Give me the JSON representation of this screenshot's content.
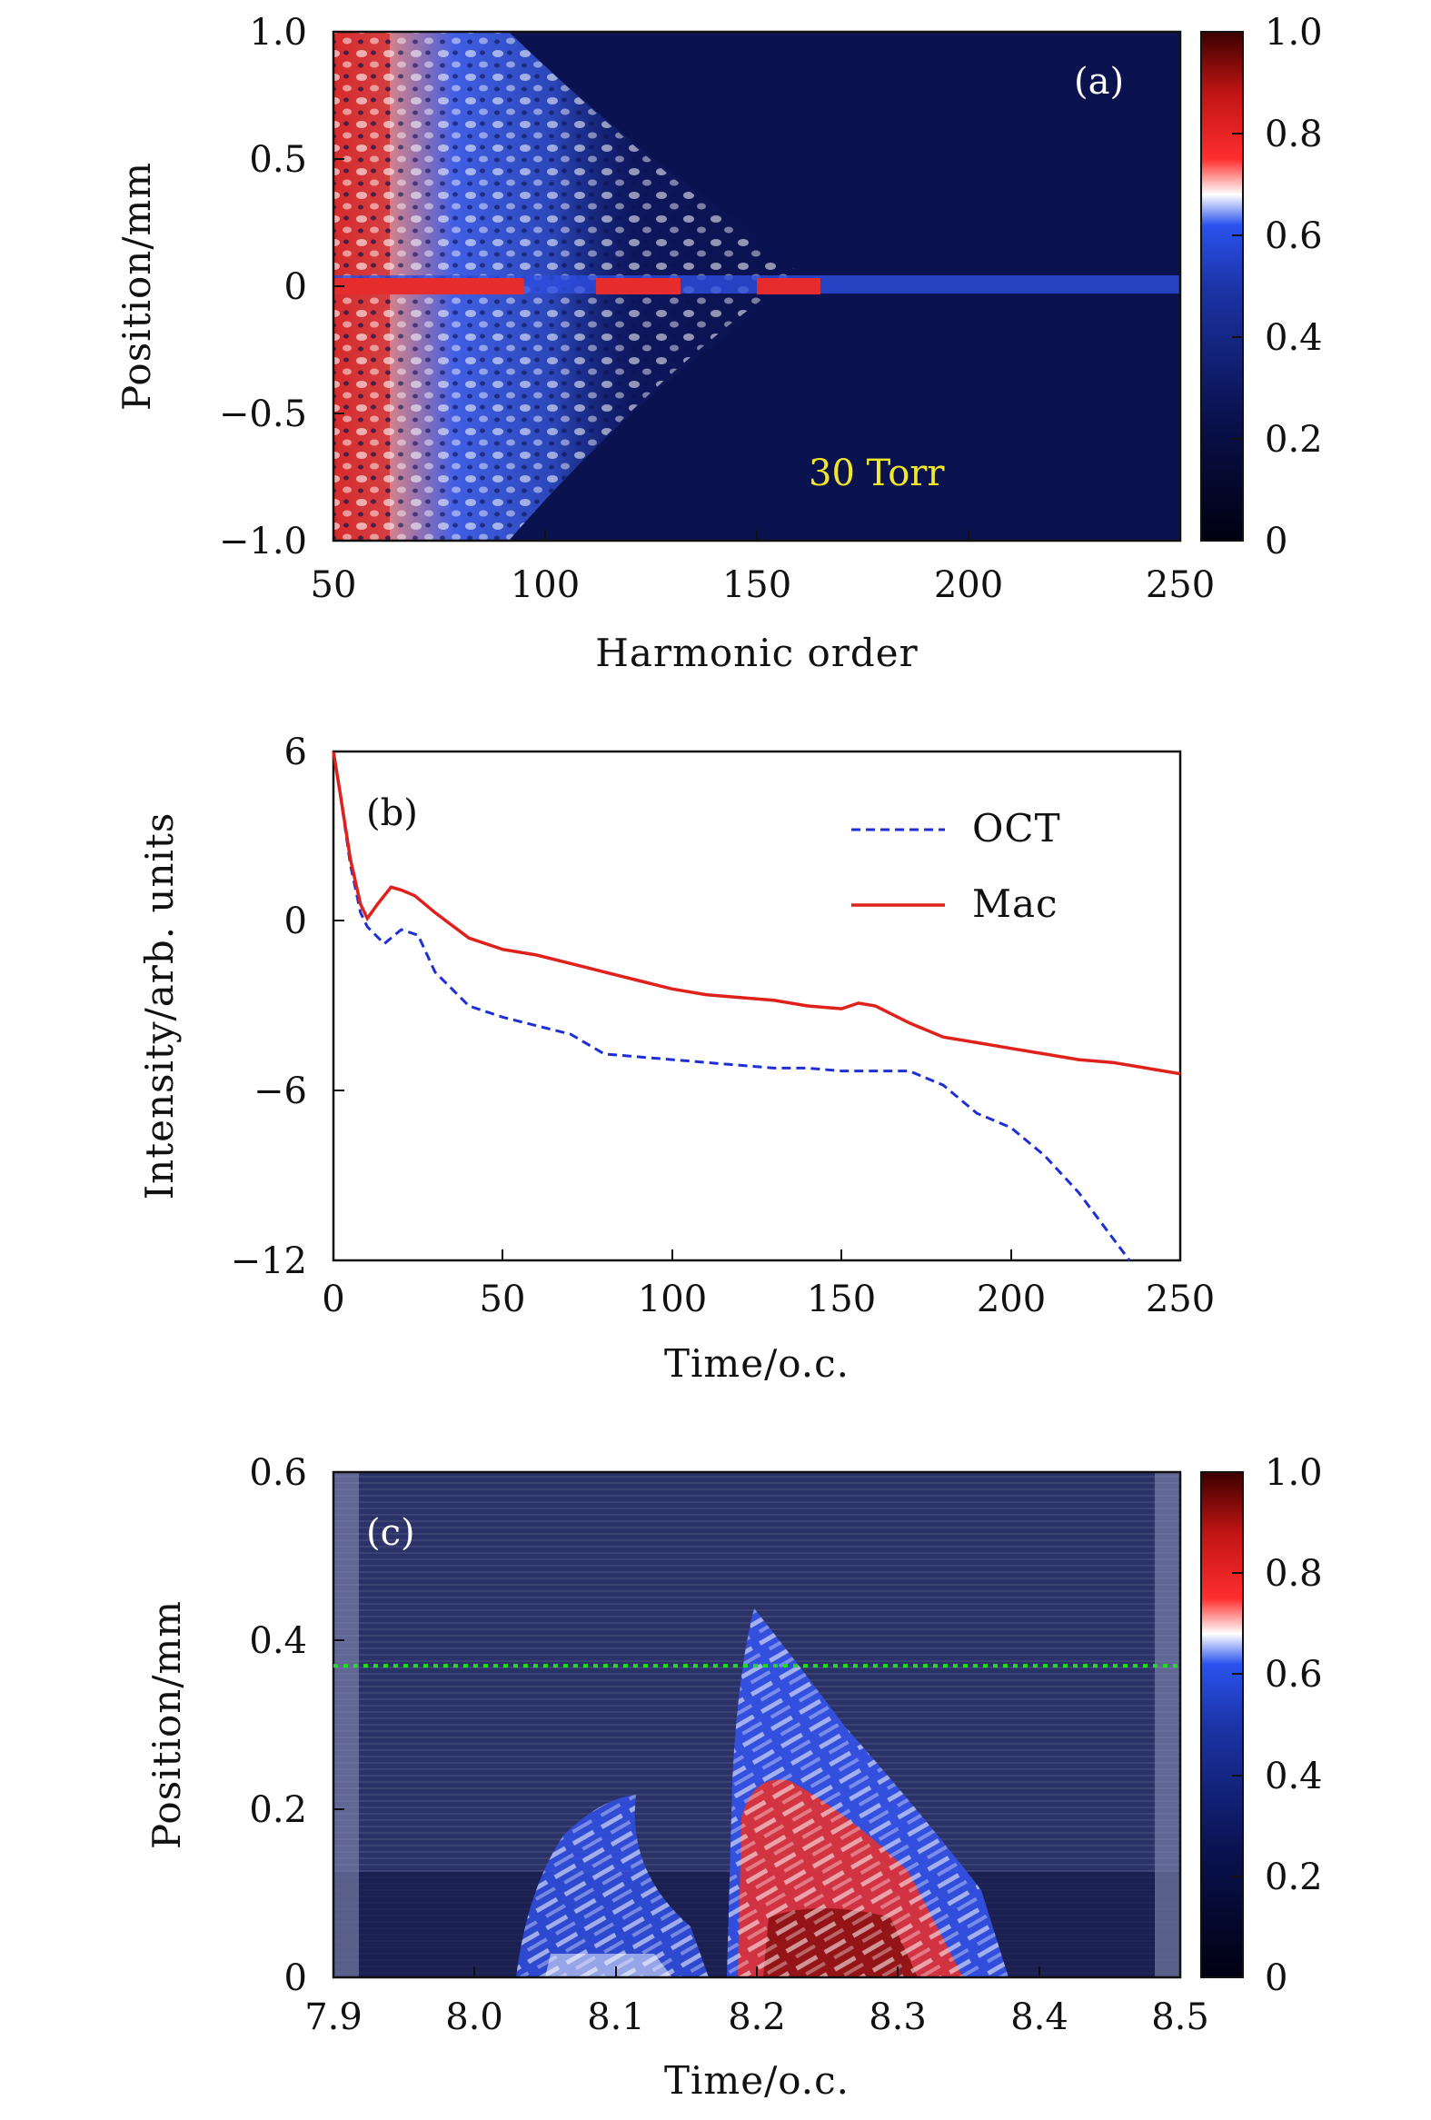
{
  "chart_data": [
    {
      "panel": "(a)",
      "type": "heatmap",
      "xlabel": "Harmonic order",
      "ylabel": "Position/mm",
      "xlim": [
        50,
        250
      ],
      "ylim": [
        -1.0,
        1.0
      ],
      "xticks": [
        "50",
        "100",
        "150",
        "200",
        "250"
      ],
      "yticks": [
        "−1.0",
        "−0.5",
        "0",
        "0.5",
        "1.0"
      ],
      "colorbar_ticks": [
        "0",
        "0.2",
        "0.4",
        "0.6",
        "0.8",
        "1.0"
      ],
      "colorbar_range": [
        0,
        1.0
      ],
      "annotation": "30 Torr",
      "annotation_color": "#f2e82a",
      "cutoff_harmonic": 165,
      "on_axis_bright_segments": [
        [
          50,
          95
        ],
        [
          112,
          132
        ],
        [
          150,
          165
        ]
      ]
    },
    {
      "panel": "(b)",
      "type": "line",
      "xlabel": "Time/o.c.",
      "ylabel": "Intensity/arb. units",
      "xlim": [
        0,
        250
      ],
      "ylim": [
        -12,
        6
      ],
      "xticks": [
        "0",
        "50",
        "100",
        "150",
        "200",
        "250"
      ],
      "yticks": [
        "−12",
        "−6",
        "0",
        "6"
      ],
      "legend_position": "top-right",
      "series": [
        {
          "name": "OCT",
          "color": "#1f2fd6",
          "dash": "dashed",
          "x": [
            0,
            2,
            5,
            8,
            10,
            15,
            20,
            25,
            30,
            40,
            50,
            60,
            70,
            80,
            90,
            100,
            110,
            120,
            130,
            140,
            150,
            160,
            170,
            180,
            190,
            200,
            210,
            220,
            225,
            230,
            235
          ],
          "y": [
            6.0,
            4.5,
            2.0,
            0.3,
            -0.2,
            -0.8,
            -0.3,
            -0.5,
            -1.8,
            -3.0,
            -3.4,
            -3.7,
            -4.0,
            -4.7,
            -4.8,
            -4.9,
            -5.0,
            -5.1,
            -5.2,
            -5.2,
            -5.3,
            -5.3,
            -5.3,
            -5.8,
            -6.8,
            -7.3,
            -8.3,
            -9.6,
            -10.4,
            -11.2,
            -12.0
          ]
        },
        {
          "name": "Mac",
          "color": "#e0201a",
          "dash": "solid",
          "x": [
            0,
            2,
            5,
            8,
            10,
            13,
            17,
            20,
            24,
            30,
            40,
            50,
            60,
            70,
            80,
            90,
            100,
            110,
            120,
            130,
            140,
            150,
            155,
            160,
            170,
            180,
            190,
            200,
            210,
            220,
            230,
            240,
            250
          ],
          "y": [
            6.0,
            4.5,
            2.2,
            0.6,
            0.1,
            0.6,
            1.2,
            1.1,
            0.9,
            0.3,
            -0.6,
            -1.0,
            -1.2,
            -1.5,
            -1.8,
            -2.1,
            -2.4,
            -2.6,
            -2.7,
            -2.8,
            -3.0,
            -3.1,
            -2.9,
            -3.0,
            -3.6,
            -4.1,
            -4.3,
            -4.5,
            -4.7,
            -4.9,
            -5.0,
            -5.2,
            -5.4
          ]
        }
      ]
    },
    {
      "panel": "(c)",
      "type": "heatmap",
      "xlabel": "Time/o.c.",
      "ylabel": "Position/mm",
      "xlim": [
        7.9,
        8.5
      ],
      "ylim": [
        0,
        0.6
      ],
      "xticks": [
        "7.9",
        "8.0",
        "8.1",
        "8.2",
        "8.3",
        "8.4",
        "8.5"
      ],
      "yticks": [
        "0",
        "0.2",
        "0.4",
        "0.6"
      ],
      "colorbar_ticks": [
        "0",
        "0.2",
        "0.4",
        "0.6",
        "0.8",
        "1.0"
      ],
      "colorbar_range": [
        0,
        1.0
      ],
      "reference_line": {
        "y": 0.37,
        "color": "#22dd22",
        "style": "dotted"
      }
    }
  ]
}
